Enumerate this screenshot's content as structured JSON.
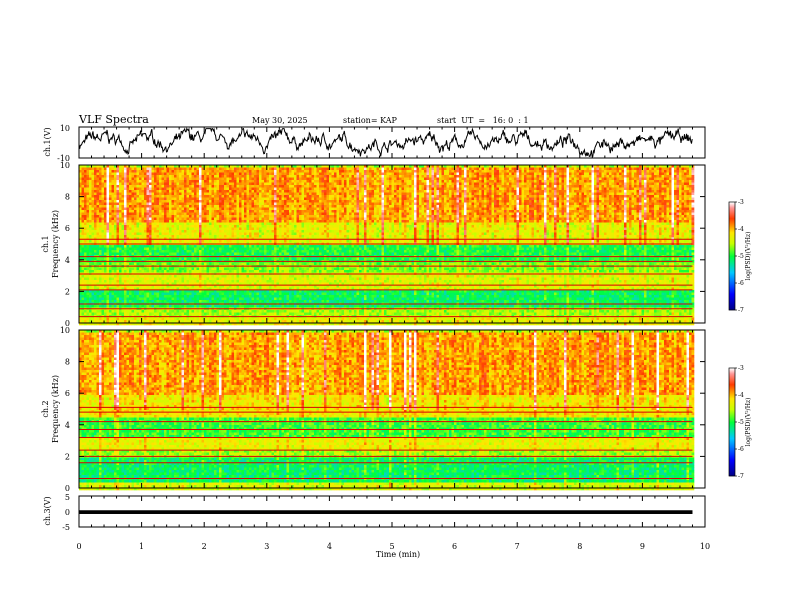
{
  "header": {
    "title": "VLF Spectra",
    "date": "May 30, 2025",
    "station": "station= KAP",
    "start": "start  UT  =   16: 0  : 1"
  },
  "chart_data": [
    {
      "type": "line",
      "name": "ch1-waveform",
      "ylabel": "ch.1(V)",
      "ylim": [
        -10,
        10
      ],
      "y_ticks": [
        "10",
        "-10"
      ],
      "xlim": [
        0,
        10
      ]
    },
    {
      "type": "heatmap",
      "name": "ch1-spectrogram",
      "ylabel": "ch.1\nFrequency (kHz)",
      "ylim": [
        0,
        10
      ],
      "y_ticks": [
        "0",
        "2",
        "4",
        "6",
        "8",
        "10"
      ],
      "data_end_min": 9.8,
      "bands": [
        {
          "from": 0,
          "to": 0.5,
          "level": -4.3
        },
        {
          "from": 0.5,
          "to": 1.0,
          "level": -4.6
        },
        {
          "from": 1.0,
          "to": 2.2,
          "level": -5.1
        },
        {
          "from": 2.2,
          "to": 3.2,
          "level": -4.4
        },
        {
          "from": 3.2,
          "to": 3.9,
          "level": -4.7
        },
        {
          "from": 3.9,
          "to": 5.0,
          "level": -5.0
        },
        {
          "from": 5.0,
          "to": 6.5,
          "level": -4.3
        },
        {
          "from": 6.5,
          "to": 10.0,
          "level": -3.9
        }
      ],
      "lines_khz": [
        0.4,
        0.9,
        1.2,
        2.1,
        2.4,
        3.1,
        3.6,
        3.9,
        4.2,
        5.0,
        5.3
      ],
      "colorbar": {
        "label": "log(PSD)(V²/Hz)",
        "range": [
          -7,
          -3
        ],
        "ticks": [
          "-3",
          "-4",
          "-5",
          "-6",
          "-7"
        ]
      }
    },
    {
      "type": "heatmap",
      "name": "ch2-spectrogram",
      "ylabel": "ch.2\nFrequency (kHz)",
      "ylim": [
        0,
        10
      ],
      "y_ticks": [
        "0",
        "2",
        "4",
        "6",
        "8",
        "10"
      ],
      "data_end_min": 9.8,
      "bands": [
        {
          "from": 0,
          "to": 0.5,
          "level": -4.4
        },
        {
          "from": 0.5,
          "to": 2.0,
          "level": -5.1
        },
        {
          "from": 2.0,
          "to": 2.5,
          "level": -4.6
        },
        {
          "from": 2.5,
          "to": 3.2,
          "level": -4.3
        },
        {
          "from": 3.2,
          "to": 4.5,
          "level": -4.9
        },
        {
          "from": 4.5,
          "to": 6.0,
          "level": -4.2
        },
        {
          "from": 6.0,
          "to": 10.0,
          "level": -3.9
        }
      ],
      "lines_khz": [
        0.6,
        1.6,
        2.0,
        2.4,
        3.2,
        3.7,
        4.2,
        4.8,
        5.1
      ],
      "colorbar": {
        "label": "log(PSD)(V²/Hz)",
        "range": [
          -7,
          -3
        ],
        "ticks": [
          "-3",
          "-4",
          "-5",
          "-6",
          "-7"
        ]
      }
    },
    {
      "type": "line",
      "name": "ch3-waveform",
      "ylabel": "ch.3(V)",
      "ylim": [
        -5,
        5
      ],
      "y_ticks": [
        "5",
        "0",
        "-5"
      ],
      "level_band": [
        -0.8,
        0.4
      ],
      "xlim": [
        0,
        10
      ],
      "xlabel": "Time (min)",
      "x_ticks": [
        "0",
        "1",
        "2",
        "3",
        "4",
        "5",
        "6",
        "7",
        "8",
        "9",
        "10"
      ]
    }
  ]
}
